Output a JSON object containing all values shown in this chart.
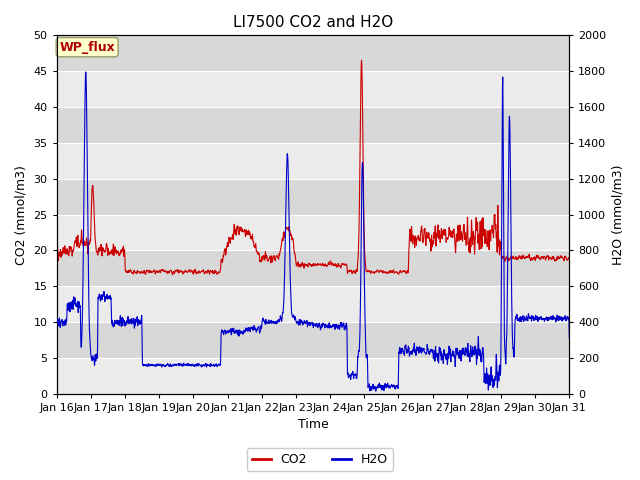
{
  "title": "LI7500 CO2 and H2O",
  "xlabel": "Time",
  "ylabel_left": "CO2 (mmol/m3)",
  "ylabel_right": "H2O (mmol/m3)",
  "xlim_days": [
    16,
    31
  ],
  "ylim_left": [
    0,
    50
  ],
  "ylim_right": [
    0,
    2000
  ],
  "yticks_left": [
    0,
    5,
    10,
    15,
    20,
    25,
    30,
    35,
    40,
    45,
    50
  ],
  "yticks_right": [
    0,
    200,
    400,
    600,
    800,
    1000,
    1200,
    1400,
    1600,
    1800,
    2000
  ],
  "xtick_labels": [
    "Jan 16",
    "Jan 17",
    "Jan 18",
    "Jan 19",
    "Jan 20",
    "Jan 21",
    "Jan 22",
    "Jan 23",
    "Jan 24",
    "Jan 25",
    "Jan 26",
    "Jan 27",
    "Jan 28",
    "Jan 29",
    "Jan 30",
    "Jan 31"
  ],
  "annotation_text": "WP_flux",
  "annotation_bg": "#FFFFCC",
  "annotation_fg": "#AA0000",
  "co2_color": "#CC0000",
  "h2o_color": "#0000CC",
  "legend_co2": "CO2",
  "legend_h2o": "H2O",
  "bg_color_light": "#EBEBEB",
  "bg_color_dark": "#D8D8D8",
  "grid_color": "#FFFFFF",
  "title_fontsize": 11,
  "label_fontsize": 9,
  "tick_fontsize": 8,
  "line_width": 0.8,
  "seed": 42
}
